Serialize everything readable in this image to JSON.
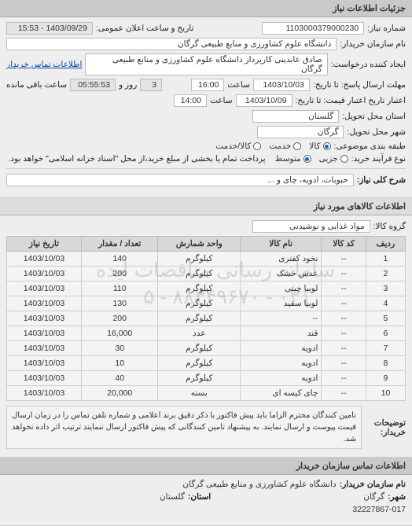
{
  "header": {
    "title": "جزئیات اطلاعات نیاز"
  },
  "info": {
    "need_no_label": "شماره نیاز:",
    "need_no": "1103000379000230",
    "announce_label": "تاریخ و ساعت اعلان عمومی:",
    "announce_value": "1403/09/29 - 15:53",
    "buyer_org_label": "نام سازمان خریدار:",
    "buyer_org": "دانشگاه علوم کشاورزی و منابع طبیعی گرگان",
    "requester_label": "ایجاد کننده درخواست:",
    "requester": "صادق عابدینی کارپرداز دانشگاه علوم کشاورزی و منابع طبیعی گرگان",
    "contact_link": "اطلاعات تماس خریدار",
    "deadline_send_label": "مهلت ارسال پاسخ: تا تاریخ:",
    "deadline_send_date": "1403/10/03",
    "time_label": "ساعت",
    "deadline_send_time": "16:00",
    "remain_label_prefix": "",
    "remain_days": "3",
    "remain_days_label": "روز و",
    "remain_time": "05:55:53",
    "remain_suffix": "ساعت باقی مانده",
    "validity_label": "اعتبار تاریخ اعتبار قیمت: تا تاریخ:",
    "validity_date": "1403/10/09",
    "validity_time": "14:00",
    "province_label": "استان محل تحویل:",
    "province": "گلستان",
    "city_label": "شهر محل تحویل:",
    "city": "گرگان",
    "budget_label": "طبقه بندی موضوعی:",
    "budget_options": [
      {
        "label": "کالا",
        "checked": true
      },
      {
        "label": "خدمت",
        "checked": false
      },
      {
        "label": "کالا/خدمت",
        "checked": false
      }
    ],
    "process_label": "نوع فرآیند خرید:",
    "process_options": [
      {
        "label": "جزیی",
        "checked": false
      },
      {
        "label": "متوسط",
        "checked": true
      }
    ],
    "process_note": "پرداخت تمام یا بخشی از مبلغ خرید،از محل \"اسناد خزانه اسلامی\" خواهد بود.",
    "need_title_label": "شرح کلی نیاز:",
    "need_title": "حبوبات، ادویه، چای و ..."
  },
  "items_section": {
    "title": "اطلاعات کالاهای مورد نیاز",
    "group_label": "گروه کالا:",
    "group": "مواد غذایی و نوشیدنی",
    "columns": [
      "ردیف",
      "کد کالا",
      "نام کالا",
      "واحد شمارش",
      "تعداد / مقدار",
      "تاریخ نیاز"
    ],
    "rows": [
      [
        "1",
        "--",
        "نخود کفتری",
        "کیلوگرم",
        "140",
        "1403/10/03"
      ],
      [
        "2",
        "--",
        "عدس خشک",
        "کیلوگرم",
        "200",
        "1403/10/03"
      ],
      [
        "3",
        "--",
        "لوبیا چیتی",
        "کیلوگرم",
        "110",
        "1403/10/03"
      ],
      [
        "4",
        "--",
        "لوبیا سفید",
        "کیلوگرم",
        "130",
        "1403/10/03"
      ],
      [
        "5",
        "--",
        "--",
        "کیلوگرم",
        "200",
        "1403/10/03"
      ],
      [
        "6",
        "--",
        "قند",
        "عدد",
        "16,000",
        "1403/10/03"
      ],
      [
        "7",
        "--",
        "ادویه",
        "کیلوگرم",
        "30",
        "1403/10/03"
      ],
      [
        "8",
        "--",
        "ادویه",
        "کیلوگرم",
        "10",
        "1403/10/03"
      ],
      [
        "9",
        "--",
        "ادویه",
        "کیلوگرم",
        "40",
        "1403/10/03"
      ],
      [
        "10",
        "--",
        "چای کیسه ای",
        "بسته",
        "20,000",
        "1403/10/03"
      ]
    ],
    "watermark_line1": "سامانه رسانی مناقصات ایده",
    "watermark_line2": "۰۲۱ - ۸۸۳۴۹۶۷۰ - ۵"
  },
  "notes": {
    "label": "توضیحات خریدار:",
    "text": "تامین کنندگان محترم الزاما باید پیش فاکتور با ذکر دقیق برند اعلامی و شماره تلفن تماس را در زمان ارسال قیمت پیوست و ارسال نمایند. به پیشنهاد تامین کنندگانی که پیش فاکتور ارسال ننمایند ترتیب اثر داده نخواهد شد."
  },
  "footer": {
    "title": "اطلاعات تماس سازمان خریدار",
    "org_label": "نام سازمان خریدار:",
    "org": "دانشگاه علوم کشاورزی و منابع طبیعی گرگان",
    "city_label": "شهر:",
    "city": "گرگان",
    "province_label": "استان:",
    "province": "گلستان",
    "phone": "32227867-017"
  }
}
